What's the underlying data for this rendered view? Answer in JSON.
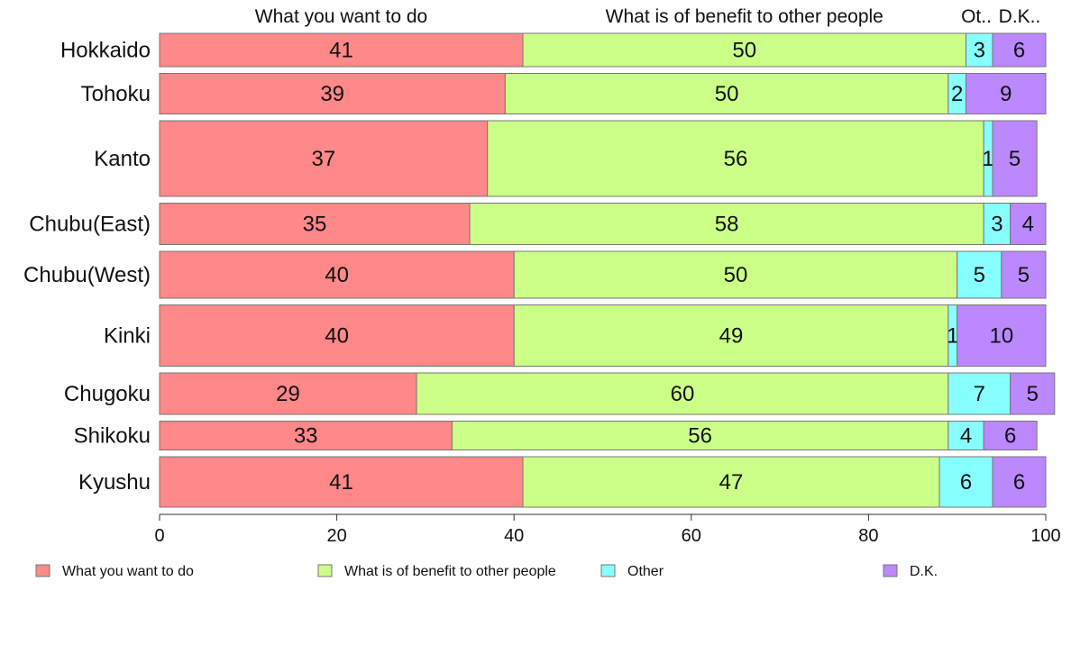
{
  "chart_data": {
    "type": "bar",
    "orientation": "horizontal",
    "stacked": true,
    "categories": [
      "Hokkaido",
      "Tohoku",
      "Kanto",
      "Chubu(East)",
      "Chubu(West)",
      "Kinki",
      "Chugoku",
      "Shikoku",
      "Kyushu"
    ],
    "series": [
      {
        "name": "What you want to do",
        "short_label": "What you want to do",
        "color": "#ff8888",
        "values": [
          41,
          39,
          37,
          35,
          40,
          40,
          29,
          33,
          41
        ],
        "labels": [
          "41",
          "39",
          "37",
          "35",
          "40",
          "40",
          "29",
          "33",
          "41"
        ]
      },
      {
        "name": "What is of benefit to other people",
        "short_label": "What is of benefit to other people",
        "color": "#ccff88",
        "values": [
          50,
          50,
          56,
          58,
          50,
          49,
          60,
          56,
          47
        ],
        "labels": [
          "50",
          "50",
          "56",
          "58",
          "50",
          "49",
          "60",
          "56",
          "47"
        ]
      },
      {
        "name": "Other",
        "short_label": "Ot..",
        "color": "#88ffff",
        "values": [
          3,
          2,
          1,
          3,
          5,
          1,
          7,
          4,
          6
        ],
        "labels": [
          "3",
          "2",
          "1",
          "3",
          "5",
          "1",
          "7",
          "4",
          "6"
        ]
      },
      {
        "name": "D.K.",
        "short_label": "D.K..",
        "color": "#bb88ff",
        "values": [
          6,
          9,
          5,
          4,
          5,
          10,
          5,
          6,
          6
        ],
        "labels": [
          "6",
          "9",
          "5",
          "4",
          "5",
          "10",
          "5",
          "6",
          "6"
        ]
      }
    ],
    "xlim": [
      0,
      100
    ],
    "xticks": [
      "0",
      "20",
      "40",
      "60",
      "80",
      "100"
    ],
    "row_weights": [
      37,
      45,
      84,
      46,
      52,
      68,
      46,
      32,
      56
    ],
    "legend": "bottom",
    "grid": false
  }
}
